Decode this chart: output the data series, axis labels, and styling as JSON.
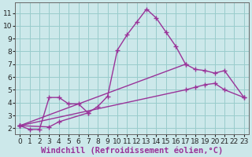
{
  "background_color": "#cce8ea",
  "grid_color": "#99cccc",
  "line_color": "#993399",
  "marker": "+",
  "markersize": 5,
  "linewidth": 1.0,
  "xlabel": "Windchill (Refroidissement éolien,°C)",
  "xlabel_fontsize": 7.5,
  "tick_fontsize": 6.5,
  "xlim": [
    -0.5,
    23.5
  ],
  "ylim": [
    1.5,
    11.8
  ],
  "xticks": [
    0,
    1,
    2,
    3,
    4,
    5,
    6,
    7,
    8,
    9,
    10,
    11,
    12,
    13,
    14,
    15,
    16,
    17,
    18,
    19,
    20,
    21,
    22,
    23
  ],
  "yticks": [
    2,
    3,
    4,
    5,
    6,
    7,
    8,
    9,
    10,
    11
  ],
  "series": [
    {
      "x": [
        0,
        1,
        2,
        3,
        4,
        5,
        6,
        7,
        8,
        9,
        10,
        11,
        12,
        13,
        14,
        15,
        16,
        17
      ],
      "y": [
        2.2,
        1.9,
        1.9,
        4.4,
        4.4,
        3.9,
        3.9,
        3.2,
        3.7,
        4.5,
        8.1,
        9.3,
        10.3,
        11.3,
        10.6,
        9.5,
        8.4,
        7.0
      ]
    },
    {
      "x": [
        0,
        3,
        4,
        7
      ],
      "y": [
        2.2,
        2.1,
        2.5,
        3.2
      ]
    },
    {
      "x": [
        0,
        17,
        18,
        19,
        20,
        21,
        23
      ],
      "y": [
        2.2,
        7.0,
        6.6,
        6.5,
        6.3,
        6.5,
        4.4
      ]
    },
    {
      "x": [
        0,
        17,
        18,
        19,
        20,
        21,
        23
      ],
      "y": [
        2.2,
        5.0,
        5.2,
        5.4,
        5.5,
        5.0,
        4.4
      ]
    }
  ]
}
